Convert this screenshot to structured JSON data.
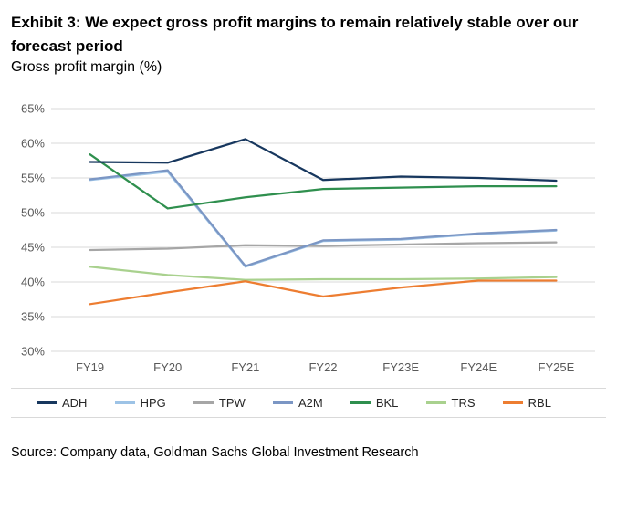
{
  "exhibit": {
    "title": "Exhibit 3: We expect gross profit margins to remain relatively stable over our forecast period",
    "subtitle": "Gross profit margin (%)",
    "source": "Source: Company data, Goldman Sachs Global Investment Research"
  },
  "chart_data": {
    "type": "line",
    "title": "Gross profit margin (%)",
    "categories": [
      "FY19",
      "FY20",
      "FY21",
      "FY22",
      "FY23E",
      "FY24E",
      "FY25E"
    ],
    "series": [
      {
        "name": "ADH",
        "color": "#17375e",
        "values": [
          57.3,
          57.2,
          60.6,
          54.7,
          55.2,
          55.0,
          54.6
        ]
      },
      {
        "name": "HPG",
        "color": "#9dc3e6",
        "values": [
          54.7,
          55.9,
          42.2,
          45.9,
          46.1,
          46.9,
          47.4
        ]
      },
      {
        "name": "TPW",
        "color": "#a6a6a6",
        "values": [
          44.6,
          44.8,
          45.3,
          45.2,
          45.4,
          45.6,
          45.7
        ]
      },
      {
        "name": "A2M",
        "color": "#7b96c4",
        "values": [
          54.8,
          56.1,
          42.3,
          46.0,
          46.2,
          47.0,
          47.5
        ]
      },
      {
        "name": "BKL",
        "color": "#2f8f4e",
        "values": [
          58.4,
          50.6,
          52.2,
          53.4,
          53.6,
          53.8,
          53.8
        ]
      },
      {
        "name": "TRS",
        "color": "#a9d18e",
        "values": [
          42.2,
          41.0,
          40.3,
          40.4,
          40.4,
          40.5,
          40.7
        ]
      },
      {
        "name": "RBL",
        "color": "#ed7d31",
        "values": [
          36.8,
          38.5,
          40.1,
          37.9,
          39.2,
          40.2,
          40.2
        ]
      }
    ],
    "xlabel": "",
    "ylabel": "",
    "ylim": [
      30,
      65
    ],
    "ytick_step": 5,
    "ytick_suffix": "%",
    "grid": "horizontal",
    "legend_position": "bottom",
    "draw_order": [
      "HPG",
      "TPW",
      "TRS",
      "RBL",
      "A2M",
      "BKL",
      "ADH"
    ]
  }
}
